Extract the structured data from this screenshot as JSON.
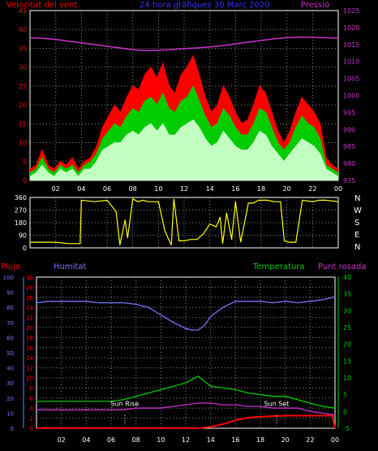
{
  "colors": {
    "background": "#000000",
    "axis": "#ffffff",
    "grid": "#ffffff",
    "wind_gust": "#ff0000",
    "wind_max": "#00cc00",
    "wind_avg": "#ccffcc",
    "pressure": "#cc33cc",
    "direction": "#ffff00",
    "rain": "#ff0000",
    "humidity": "#7777ff",
    "temperature": "#00cc00",
    "dewpoint": "#cc33cc"
  },
  "header": {
    "left": "Velocitat del vent",
    "center": "24 hora gràfiques  30 Març 2020",
    "right": "Pressió"
  },
  "dir_letters": [
    "N",
    "W",
    "S",
    "E",
    "N"
  ],
  "lower_header": {
    "rain": "Pluja",
    "humidity": "Humitat",
    "temperature": "Temperatura",
    "dewpoint": "Punt rosada"
  },
  "sun": {
    "rise": "Sun Rise",
    "set": "Sun Set"
  },
  "chart_data": [
    {
      "type": "area",
      "ylabel": "Velocitat del vent",
      "y2label": "Pressió",
      "x_ticks": [
        "02",
        "04",
        "06",
        "08",
        "10",
        "12",
        "14",
        "16",
        "18",
        "20",
        "22",
        "00"
      ],
      "xlim": [
        0,
        24
      ],
      "ylim": [
        0,
        45
      ],
      "y_ticks": [
        0,
        5,
        10,
        15,
        20,
        25,
        30,
        35,
        40,
        45
      ],
      "y2lim": [
        975,
        1025
      ],
      "y2_ticks": [
        975,
        980,
        985,
        990,
        995,
        1000,
        1005,
        1010,
        1015,
        1020,
        1025
      ],
      "grid": true,
      "series": [
        {
          "name": "Ràfega",
          "values": [
            3,
            4,
            8,
            4,
            3,
            5,
            4,
            6,
            3,
            5,
            6,
            9,
            14,
            17,
            20,
            18,
            22,
            25,
            24,
            28,
            30,
            27,
            31,
            25,
            23,
            28,
            30,
            33,
            28,
            22,
            18,
            20,
            25,
            22,
            18,
            15,
            16,
            20,
            25,
            23,
            18,
            13,
            10,
            13,
            18,
            22,
            20,
            18,
            15,
            6,
            4,
            3
          ]
        },
        {
          "name": "Vent màxim",
          "values": [
            2,
            3,
            6,
            3,
            2,
            4,
            3,
            4,
            2,
            4,
            5,
            7,
            11,
            13,
            15,
            14,
            17,
            19,
            18,
            21,
            22,
            20,
            23,
            19,
            18,
            21,
            22,
            25,
            21,
            17,
            14,
            15,
            19,
            17,
            14,
            12,
            12,
            15,
            19,
            18,
            14,
            10,
            8,
            10,
            14,
            17,
            15,
            14,
            11,
            4,
            3,
            2
          ]
        },
        {
          "name": "Vent mitjà",
          "values": [
            1,
            2,
            4,
            2,
            1,
            3,
            2,
            3,
            1,
            3,
            3,
            5,
            8,
            9,
            10,
            10,
            12,
            13,
            12,
            14,
            15,
            13,
            15,
            12,
            12,
            14,
            15,
            16,
            14,
            11,
            9,
            10,
            13,
            11,
            9,
            8,
            8,
            10,
            13,
            12,
            9,
            7,
            5,
            7,
            9,
            11,
            10,
            9,
            7,
            3,
            2,
            1
          ]
        },
        {
          "name": "Pressió",
          "x": [
            0,
            1,
            2,
            3,
            4,
            5,
            6,
            7,
            8,
            9,
            10,
            11,
            12,
            13,
            14,
            15,
            16,
            17,
            18,
            19,
            20,
            21,
            22,
            23,
            24
          ],
          "values": [
            1017,
            1016.8,
            1016.5,
            1016,
            1015.5,
            1015,
            1014.5,
            1014,
            1013.5,
            1013.2,
            1013.3,
            1013.5,
            1013.8,
            1014,
            1014.3,
            1014.7,
            1015.2,
            1015.7,
            1016.2,
            1016.7,
            1017,
            1017.2,
            1017.1,
            1017,
            1016.9
          ]
        }
      ]
    },
    {
      "type": "line",
      "ylabel": "Direcció",
      "x_ticks": [
        "02",
        "04",
        "06",
        "08",
        "10",
        "12",
        "14",
        "16",
        "18",
        "20",
        "22",
        "00"
      ],
      "xlim": [
        0,
        24
      ],
      "ylim": [
        0,
        360
      ],
      "y_ticks": [
        0,
        90,
        180,
        270,
        360
      ],
      "grid": true,
      "series": [
        {
          "name": "Direcció",
          "x": [
            0,
            1,
            2,
            3,
            3.9,
            4,
            5,
            6,
            6.7,
            7,
            7.4,
            7.6,
            8,
            8.4,
            8.8,
            9.2,
            10,
            10.5,
            11,
            11.2,
            11.6,
            12,
            12.5,
            13,
            13.5,
            14,
            14.5,
            14.8,
            15,
            15.3,
            15.7,
            16,
            16.4,
            17,
            17.4,
            17.8,
            18.5,
            19,
            19.5,
            19.8,
            20.2,
            20.7,
            21.2,
            22,
            22.5,
            23,
            24
          ],
          "values": [
            40,
            40,
            40,
            30,
            30,
            340,
            330,
            340,
            260,
            20,
            200,
            70,
            350,
            330,
            340,
            330,
            330,
            120,
            20,
            350,
            50,
            50,
            60,
            60,
            100,
            170,
            150,
            220,
            30,
            250,
            60,
            330,
            40,
            320,
            320,
            340,
            340,
            330,
            330,
            50,
            40,
            40,
            340,
            330,
            340,
            340,
            330
          ]
        }
      ]
    },
    {
      "type": "line",
      "ylabel": "Pluja",
      "y2label": "Temperatura",
      "x_ticks": [
        "02",
        "04",
        "06",
        "08",
        "10",
        "12",
        "14",
        "16",
        "18",
        "20",
        "22",
        "00"
      ],
      "xlim": [
        0,
        24
      ],
      "ylim": [
        0,
        30
      ],
      "y_ticks": [
        0,
        2,
        4,
        6,
        8,
        10,
        12,
        14,
        16,
        18,
        20,
        22,
        24,
        26,
        28,
        30
      ],
      "y_hum_ticks": [
        0,
        10,
        20,
        30,
        40,
        50,
        60,
        70,
        80,
        90,
        100
      ],
      "y2lim": [
        -5,
        40
      ],
      "y2_ticks": [
        -5,
        0,
        5,
        10,
        15,
        20,
        25,
        30,
        35,
        40
      ],
      "grid": true,
      "series": [
        {
          "name": "Pluja",
          "x": [
            0,
            13,
            14,
            15,
            16,
            17,
            18,
            19,
            20,
            21,
            22,
            23,
            23.8,
            24
          ],
          "values": [
            0,
            0,
            0.3,
            0.8,
            1.6,
            2.1,
            2.3,
            2.4,
            2.5,
            2.5,
            2.5,
            2.5,
            2.5,
            0
          ]
        },
        {
          "name": "Humitat",
          "x": [
            0,
            1,
            2,
            3,
            4,
            5,
            6,
            7,
            8,
            9,
            10,
            11,
            12,
            12.5,
            13,
            13.5,
            14,
            15,
            16,
            17,
            18,
            19,
            20,
            21,
            22,
            23,
            24
          ],
          "values": [
            83,
            84,
            84,
            84,
            84,
            83,
            83,
            83,
            82,
            80,
            75,
            70,
            66,
            65,
            65,
            68,
            74,
            80,
            84,
            84,
            84,
            83,
            84,
            83,
            84,
            85,
            87
          ]
        },
        {
          "name": "Temperatura",
          "x": [
            0,
            1,
            2,
            3,
            4,
            5,
            6,
            7,
            8,
            9,
            10,
            11,
            12,
            12.5,
            13,
            13.5,
            14,
            15,
            16,
            17,
            18,
            19,
            20,
            21,
            22,
            23,
            24
          ],
          "values": [
            3,
            3,
            3,
            3,
            3,
            3,
            3,
            3.5,
            4.5,
            5.5,
            6.5,
            7.5,
            8.5,
            9.5,
            10.5,
            9,
            7.5,
            7,
            6.5,
            5.5,
            5,
            4.5,
            4.5,
            3.5,
            2.5,
            1.5,
            1
          ]
        },
        {
          "name": "Punt rosada",
          "x": [
            0,
            1,
            2,
            3,
            4,
            5,
            6,
            7,
            8,
            9,
            10,
            11,
            12,
            13,
            14,
            15,
            16,
            17,
            18,
            19,
            20,
            21,
            22,
            23,
            24
          ],
          "values": [
            0.5,
            0.5,
            0.5,
            0.5,
            0.5,
            0.5,
            0.5,
            0.5,
            1,
            1,
            1,
            1.5,
            2,
            2.5,
            2.5,
            2,
            2,
            1.5,
            1.5,
            1,
            1,
            1,
            0,
            -0.5,
            -1
          ]
        }
      ],
      "events": [
        {
          "label": "Sun Rise",
          "x": 7.1
        },
        {
          "label": "Sun Set",
          "x": 19.3
        }
      ]
    }
  ]
}
